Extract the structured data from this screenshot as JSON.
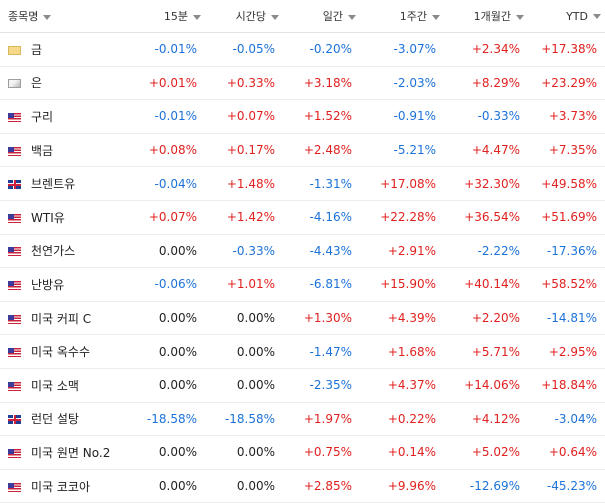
{
  "colors": {
    "positive": "#e0211f",
    "negative": "#1c72d9",
    "neutral": "#222222"
  },
  "columns": [
    "종목명",
    "15분",
    "시간당",
    "일간",
    "1주간",
    "1개월간",
    "YTD"
  ],
  "rows": [
    {
      "flag": "gold-icon",
      "name": "금",
      "values": [
        "-0.01%",
        "-0.05%",
        "-0.20%",
        "-3.07%",
        "+2.34%",
        "+17.38%"
      ]
    },
    {
      "flag": "silver-icon",
      "name": "은",
      "values": [
        "+0.01%",
        "+0.33%",
        "+3.18%",
        "-2.03%",
        "+8.29%",
        "+23.29%"
      ]
    },
    {
      "flag": "us-flag-icon",
      "name": "구리",
      "values": [
        "-0.01%",
        "+0.07%",
        "+1.52%",
        "-0.91%",
        "-0.33%",
        "+3.73%"
      ]
    },
    {
      "flag": "us-flag-icon",
      "name": "백금",
      "values": [
        "+0.08%",
        "+0.17%",
        "+2.48%",
        "-5.21%",
        "+4.47%",
        "+7.35%"
      ]
    },
    {
      "flag": "gb-flag-icon",
      "name": "브렌트유",
      "values": [
        "-0.04%",
        "+1.48%",
        "-1.31%",
        "+17.08%",
        "+32.30%",
        "+49.58%"
      ]
    },
    {
      "flag": "us-flag-icon",
      "name": "WTI유",
      "values": [
        "+0.07%",
        "+1.42%",
        "-4.16%",
        "+22.28%",
        "+36.54%",
        "+51.69%"
      ]
    },
    {
      "flag": "us-flag-icon",
      "name": "천연가스",
      "values": [
        "0.00%",
        "-0.33%",
        "-4.43%",
        "+2.91%",
        "-2.22%",
        "-17.36%"
      ]
    },
    {
      "flag": "us-flag-icon",
      "name": "난방유",
      "values": [
        "-0.06%",
        "+1.01%",
        "-6.81%",
        "+15.90%",
        "+40.14%",
        "+58.52%"
      ]
    },
    {
      "flag": "us-flag-icon",
      "name": "미국 커피 C",
      "values": [
        "0.00%",
        "0.00%",
        "+1.30%",
        "+4.39%",
        "+2.20%",
        "-14.81%"
      ]
    },
    {
      "flag": "us-flag-icon",
      "name": "미국 옥수수",
      "values": [
        "0.00%",
        "0.00%",
        "-1.47%",
        "+1.68%",
        "+5.71%",
        "+2.95%"
      ]
    },
    {
      "flag": "us-flag-icon",
      "name": "미국 소맥",
      "values": [
        "0.00%",
        "0.00%",
        "-2.35%",
        "+4.37%",
        "+14.06%",
        "+18.84%"
      ]
    },
    {
      "flag": "gb-flag-icon",
      "name": "런던 설탕",
      "values": [
        "-18.58%",
        "-18.58%",
        "+1.97%",
        "+0.22%",
        "+4.12%",
        "-3.04%"
      ]
    },
    {
      "flag": "us-flag-icon",
      "name": "미국 원면 No.2",
      "values": [
        "0.00%",
        "0.00%",
        "+0.75%",
        "+0.14%",
        "+5.02%",
        "+0.64%"
      ]
    },
    {
      "flag": "us-flag-icon",
      "name": "미국 코코아",
      "values": [
        "0.00%",
        "0.00%",
        "+2.85%",
        "+9.96%",
        "-12.69%",
        "-45.23%"
      ]
    }
  ]
}
